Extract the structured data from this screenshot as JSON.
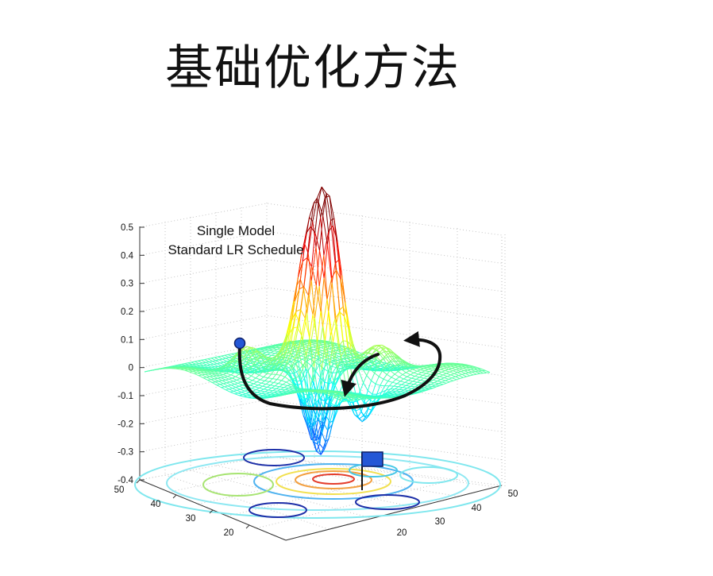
{
  "slide": {
    "title": "基础优化方法"
  },
  "chart_data": {
    "type": "surface",
    "annotation_lines": [
      "Single Model",
      "Standard LR Schedule"
    ],
    "z_axis": {
      "range": [
        -0.4,
        0.5
      ],
      "ticks": [
        "0.5",
        "0.4",
        "0.3",
        "0.2",
        "0.1",
        "0",
        "-0.1",
        "-0.2",
        "-0.3",
        "-0.4"
      ]
    },
    "left_axis": {
      "ticks": [
        "50",
        "40",
        "30",
        "20"
      ]
    },
    "right_axis": {
      "ticks": [
        "20",
        "30",
        "40",
        "50"
      ]
    },
    "grid": true,
    "colormap": "jet",
    "markers": {
      "start_point": "blue-dot",
      "goal": "blue-flag"
    },
    "trajectory": "black-arrow-curve"
  }
}
